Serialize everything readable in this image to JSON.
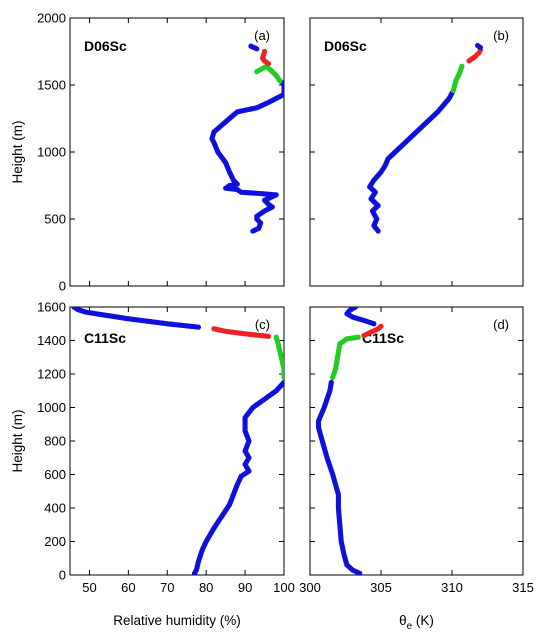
{
  "chart_data": [
    {
      "type": "scatter",
      "panel_label": "(a)",
      "case": "D06Sc",
      "xlim": [
        45,
        100
      ],
      "ylim": [
        0,
        2000
      ],
      "xticks": [],
      "yticks": [
        "0",
        "500",
        "1000",
        "1500",
        "2000"
      ],
      "ylabel": "Height (m)",
      "xlabel": "",
      "series": [
        {
          "color": "#1010dd",
          "points": [
            [
              92,
              410
            ],
            [
              93.5,
              430
            ],
            [
              94,
              470
            ],
            [
              93,
              500
            ],
            [
              93,
              520
            ],
            [
              95,
              560
            ],
            [
              97,
              590
            ],
            [
              96,
              610
            ],
            [
              95,
              640
            ],
            [
              98,
              680
            ],
            [
              94,
              690
            ],
            [
              89,
              700
            ],
            [
              88,
              720
            ],
            [
              85,
              730
            ],
            [
              86,
              750
            ],
            [
              88,
              760
            ],
            [
              87,
              790
            ],
            [
              86,
              850
            ],
            [
              85,
              920
            ],
            [
              83,
              1000
            ],
            [
              82,
              1070
            ],
            [
              81.5,
              1100
            ],
            [
              82,
              1150
            ],
            [
              84,
              1200
            ],
            [
              86,
              1250
            ],
            [
              88,
              1300
            ],
            [
              93,
              1330
            ],
            [
              96,
              1370
            ],
            [
              98,
              1400
            ],
            [
              100,
              1430
            ],
            [
              100,
              1460
            ],
            [
              100,
              1500
            ],
            [
              99.5,
              1520
            ]
          ]
        },
        {
          "color": "#22cc22",
          "points": [
            [
              99,
              1530
            ],
            [
              98,
              1570
            ],
            [
              97,
              1600
            ],
            [
              95.5,
              1640
            ],
            [
              93,
              1600
            ]
          ]
        },
        {
          "color": "#ee2222",
          "points": [
            [
              96,
              1660
            ],
            [
              95,
              1680
            ],
            [
              94.5,
              1700
            ],
            [
              94.8,
              1730
            ],
            [
              95,
              1750
            ]
          ]
        },
        {
          "color": "#1010dd",
          "points": [
            [
              93,
              1770
            ],
            [
              91.5,
              1790
            ]
          ]
        }
      ]
    },
    {
      "type": "scatter",
      "panel_label": "(b)",
      "case": "D06Sc",
      "xlim": [
        300,
        315
      ],
      "ylim": [
        0,
        2000
      ],
      "xticks": [],
      "yticks": [],
      "xlabel": "",
      "ylabel": "",
      "series": [
        {
          "color": "#1010dd",
          "points": [
            [
              304.8,
              410
            ],
            [
              304.5,
              450
            ],
            [
              304.7,
              500
            ],
            [
              304.4,
              560
            ],
            [
              304.8,
              600
            ],
            [
              304.3,
              650
            ],
            [
              304.6,
              700
            ],
            [
              304.2,
              740
            ],
            [
              304.5,
              790
            ],
            [
              305,
              850
            ],
            [
              305.3,
              900
            ],
            [
              305.5,
              950
            ],
            [
              306,
              1000
            ],
            [
              306.5,
              1050
            ],
            [
              307,
              1100
            ],
            [
              307.5,
              1150
            ],
            [
              308,
              1200
            ],
            [
              308.6,
              1260
            ],
            [
              309,
              1300
            ],
            [
              309.4,
              1350
            ],
            [
              309.8,
              1400
            ],
            [
              310,
              1440
            ]
          ]
        },
        {
          "color": "#22cc22",
          "points": [
            [
              310.1,
              1460
            ],
            [
              310.2,
              1500
            ],
            [
              310.3,
              1540
            ],
            [
              310.5,
              1580
            ],
            [
              310.7,
              1640
            ]
          ]
        },
        {
          "color": "#ee2222",
          "points": [
            [
              311.2,
              1680
            ],
            [
              311.6,
              1710
            ],
            [
              311.9,
              1740
            ],
            [
              312,
              1760
            ]
          ]
        },
        {
          "color": "#1010dd",
          "points": [
            [
              312,
              1780
            ],
            [
              311.8,
              1795
            ]
          ]
        }
      ]
    },
    {
      "type": "scatter",
      "panel_label": "(c)",
      "case": "C11Sc",
      "xlim": [
        45,
        100
      ],
      "ylim": [
        0,
        1600
      ],
      "xticks": [
        "50",
        "60",
        "70",
        "80",
        "90",
        "100"
      ],
      "yticks": [
        "0",
        "200",
        "400",
        "600",
        "800",
        "1000",
        "1200",
        "1400",
        "1600"
      ],
      "xlabel": "Relative humidity (%)",
      "ylabel": "Height (m)",
      "series": [
        {
          "color": "#1010dd",
          "points": [
            [
              77,
              10
            ],
            [
              77.5,
              30
            ],
            [
              78,
              80
            ],
            [
              79,
              150
            ],
            [
              80,
              200
            ],
            [
              82,
              280
            ],
            [
              84,
              350
            ],
            [
              86,
              420
            ],
            [
              87,
              480
            ],
            [
              88,
              540
            ],
            [
              89,
              590
            ],
            [
              91,
              620
            ],
            [
              90,
              660
            ],
            [
              91,
              700
            ],
            [
              90,
              740
            ],
            [
              91,
              800
            ],
            [
              90,
              860
            ],
            [
              90,
              940
            ],
            [
              92,
              1000
            ],
            [
              95,
              1050
            ],
            [
              98,
              1100
            ],
            [
              100,
              1150
            ]
          ]
        },
        {
          "color": "#22cc22",
          "points": [
            [
              100,
              1180
            ],
            [
              100,
              1230
            ],
            [
              99.5,
              1280
            ],
            [
              99,
              1330
            ],
            [
              98.5,
              1380
            ],
            [
              98,
              1420
            ]
          ]
        },
        {
          "color": "#ee2222",
          "points": [
            [
              96,
              1425
            ],
            [
              90,
              1440
            ],
            [
              85,
              1455
            ],
            [
              82,
              1470
            ]
          ]
        },
        {
          "color": "#1010dd",
          "points": [
            [
              78,
              1480
            ],
            [
              70,
              1500
            ],
            [
              60,
              1530
            ],
            [
              53,
              1555
            ],
            [
              49,
              1570
            ],
            [
              47,
              1585
            ],
            [
              46,
              1600
            ]
          ]
        }
      ]
    },
    {
      "type": "scatter",
      "panel_label": "(d)",
      "case": "C11Sc",
      "xlim": [
        300,
        315
      ],
      "ylim": [
        0,
        1600
      ],
      "xticks": [
        "300",
        "305",
        "310",
        "315"
      ],
      "yticks": [],
      "xlabel": "θe (K)",
      "ylabel": "",
      "series": [
        {
          "color": "#1010dd",
          "points": [
            [
              303.5,
              10
            ],
            [
              303,
              30
            ],
            [
              302.6,
              60
            ],
            [
              302.4,
              120
            ],
            [
              302.2,
              200
            ],
            [
              302.1,
              300
            ],
            [
              302,
              400
            ],
            [
              302,
              480
            ],
            [
              301.8,
              540
            ],
            [
              301.6,
              600
            ],
            [
              301.4,
              650
            ],
            [
              301.2,
              700
            ],
            [
              301,
              760
            ],
            [
              300.8,
              820
            ],
            [
              300.6,
              880
            ],
            [
              300.6,
              920
            ],
            [
              300.8,
              960
            ],
            [
              301,
              1000
            ],
            [
              301.2,
              1050
            ],
            [
              301.4,
              1100
            ],
            [
              301.5,
              1150
            ]
          ]
        },
        {
          "color": "#22cc22",
          "points": [
            [
              301.6,
              1180
            ],
            [
              301.8,
              1230
            ],
            [
              301.9,
              1280
            ],
            [
              302,
              1330
            ],
            [
              302.1,
              1380
            ],
            [
              302.6,
              1410
            ],
            [
              303.4,
              1420
            ]
          ]
        },
        {
          "color": "#ee2222",
          "points": [
            [
              303.8,
              1430
            ],
            [
              304.3,
              1450
            ],
            [
              304.8,
              1470
            ],
            [
              305,
              1485
            ]
          ]
        },
        {
          "color": "#1010dd",
          "points": [
            [
              304.5,
              1500
            ],
            [
              303.8,
              1520
            ],
            [
              303,
              1540
            ],
            [
              302.6,
              1560
            ],
            [
              302.8,
              1580
            ],
            [
              303.2,
              1600
            ]
          ]
        }
      ]
    }
  ]
}
